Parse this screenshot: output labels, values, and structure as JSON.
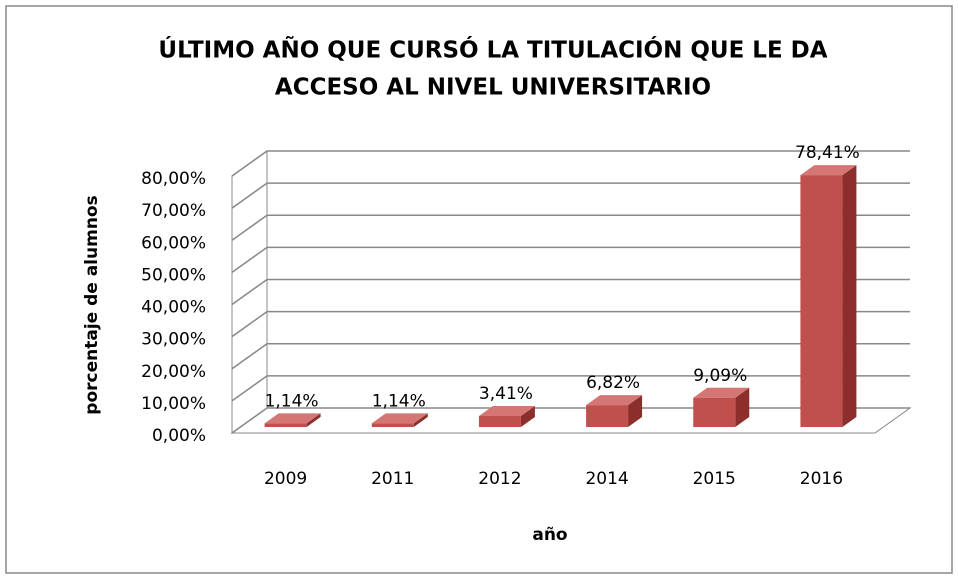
{
  "chart_data": {
    "type": "bar3d",
    "title": [
      "ÚLTIMO AÑO QUE CURSÓ LA TITULACIÓN QUE LE DA",
      "ACCESO AL NIVEL UNIVERSITARIO"
    ],
    "x_label": "año",
    "y_label": "porcentaje de alumnos",
    "categories": [
      "2009",
      "2011",
      "2012",
      "2014",
      "2015",
      "2016"
    ],
    "values": [
      1.14,
      1.14,
      3.41,
      6.82,
      9.09,
      78.41
    ],
    "value_labels": [
      "1,14%",
      "1,14%",
      "3,41%",
      "6,82%",
      "9,09%",
      "78,41%"
    ],
    "color": "#c0504d",
    "ylim": [
      0,
      80
    ],
    "yticks": [
      {
        "value": 0,
        "label": "0,00%"
      },
      {
        "value": 10,
        "label": "10,00%"
      },
      {
        "value": 20,
        "label": "20,00%"
      },
      {
        "value": 30,
        "label": "30,00%"
      },
      {
        "value": 40,
        "label": "40,00%"
      },
      {
        "value": 50,
        "label": "50,00%"
      },
      {
        "value": 60,
        "label": "60,00%"
      },
      {
        "value": 70,
        "label": "70,00%"
      },
      {
        "value": 80,
        "label": "80,00%"
      }
    ],
    "grid": true
  }
}
